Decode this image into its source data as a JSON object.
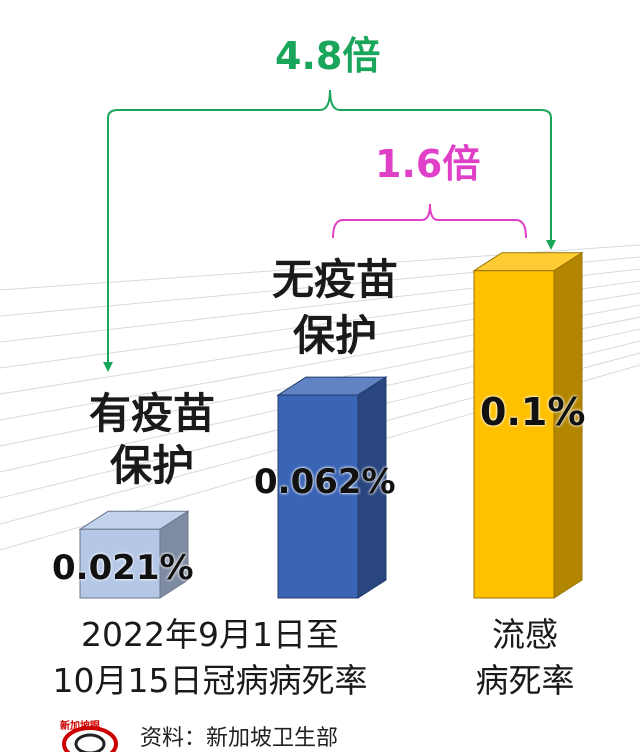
{
  "chart_data": {
    "type": "bar",
    "categories": [
      "有疫苗\n保护",
      "无疫苗\n保护",
      "流感\n病死率"
    ],
    "values": [
      0.021,
      0.062,
      0.1
    ],
    "value_labels": [
      "0.021%",
      "0.062%",
      "0.1%"
    ],
    "bar_titles": [
      [
        "有疫苗",
        "保护"
      ],
      [
        "无疫苗",
        "保护"
      ],
      [
        "",
        ""
      ]
    ],
    "group_captions": [
      [
        "2022年9月1日至",
        "10月15日冠病病死率"
      ],
      [
        "流感",
        "病死率"
      ]
    ],
    "annotations": [
      {
        "text": "4.8倍",
        "color": "#1aa65a"
      },
      {
        "text": "1.6倍",
        "color": "#e040c8"
      }
    ],
    "bar_colors": [
      "#b4c7e7",
      "#3a64b5",
      "#ffc000"
    ],
    "source": "资料：新加坡卫生部",
    "logo_text": "新加坡眼",
    "ylim": [
      0,
      0.11
    ],
    "grid": true
  }
}
